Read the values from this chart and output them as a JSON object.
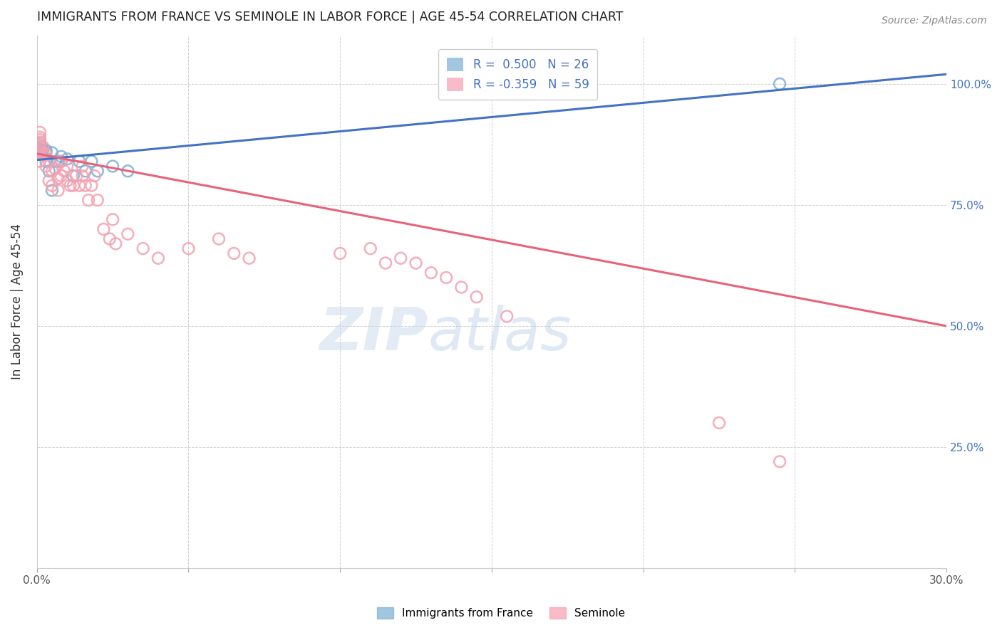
{
  "title": "IMMIGRANTS FROM FRANCE VS SEMINOLE IN LABOR FORCE | AGE 45-54 CORRELATION CHART",
  "source_text": "Source: ZipAtlas.com",
  "ylabel": "In Labor Force | Age 45-54",
  "x_min": 0.0,
  "x_max": 0.3,
  "y_min": 0.0,
  "y_max": 1.1,
  "x_ticks": [
    0.0,
    0.05,
    0.1,
    0.15,
    0.2,
    0.25,
    0.3
  ],
  "y_ticks": [
    0.0,
    0.25,
    0.5,
    0.75,
    1.0
  ],
  "y_tick_labels": [
    "",
    "25.0%",
    "50.0%",
    "75.0%",
    "100.0%"
  ],
  "france_color": "#7BAFD4",
  "seminole_color": "#F4A0B0",
  "france_line_color": "#4472C4",
  "seminole_line_color": "#E8637A",
  "background_color": "#FFFFFF",
  "grid_color": "#CCCCCC",
  "france_x": [
    0.001,
    0.001,
    0.001,
    0.001,
    0.001,
    0.002,
    0.002,
    0.003,
    0.003,
    0.003,
    0.004,
    0.005,
    0.005,
    0.006,
    0.007,
    0.008,
    0.008,
    0.01,
    0.012,
    0.014,
    0.016,
    0.018,
    0.02,
    0.025,
    0.03,
    0.245
  ],
  "france_y": [
    0.855,
    0.86,
    0.865,
    0.87,
    0.875,
    0.855,
    0.862,
    0.84,
    0.86,
    0.863,
    0.82,
    0.78,
    0.858,
    0.84,
    0.84,
    0.84,
    0.85,
    0.845,
    0.81,
    0.84,
    0.82,
    0.84,
    0.82,
    0.83,
    0.82,
    1.0
  ],
  "seminole_x": [
    0.001,
    0.001,
    0.001,
    0.001,
    0.001,
    0.001,
    0.001,
    0.001,
    0.001,
    0.002,
    0.002,
    0.003,
    0.003,
    0.004,
    0.004,
    0.005,
    0.005,
    0.006,
    0.007,
    0.007,
    0.008,
    0.008,
    0.009,
    0.01,
    0.01,
    0.011,
    0.012,
    0.013,
    0.014,
    0.015,
    0.015,
    0.016,
    0.017,
    0.018,
    0.019,
    0.02,
    0.022,
    0.024,
    0.025,
    0.026,
    0.03,
    0.035,
    0.04,
    0.05,
    0.06,
    0.065,
    0.07,
    0.1,
    0.11,
    0.115,
    0.12,
    0.125,
    0.13,
    0.135,
    0.14,
    0.145,
    0.155,
    0.225,
    0.245
  ],
  "seminole_y": [
    0.84,
    0.855,
    0.86,
    0.87,
    0.875,
    0.88,
    0.885,
    0.89,
    0.9,
    0.855,
    0.87,
    0.83,
    0.855,
    0.8,
    0.84,
    0.79,
    0.82,
    0.825,
    0.78,
    0.805,
    0.81,
    0.84,
    0.82,
    0.8,
    0.83,
    0.79,
    0.79,
    0.81,
    0.79,
    0.81,
    0.83,
    0.79,
    0.76,
    0.79,
    0.81,
    0.76,
    0.7,
    0.68,
    0.72,
    0.67,
    0.69,
    0.66,
    0.64,
    0.66,
    0.68,
    0.65,
    0.64,
    0.65,
    0.66,
    0.63,
    0.64,
    0.63,
    0.61,
    0.6,
    0.58,
    0.56,
    0.52,
    0.3,
    0.22
  ],
  "france_trend_x": [
    0.0,
    0.3
  ],
  "france_trend_y": [
    0.843,
    1.02
  ],
  "seminole_trend_x": [
    0.0,
    0.3
  ],
  "seminole_trend_y": [
    0.856,
    0.5
  ]
}
